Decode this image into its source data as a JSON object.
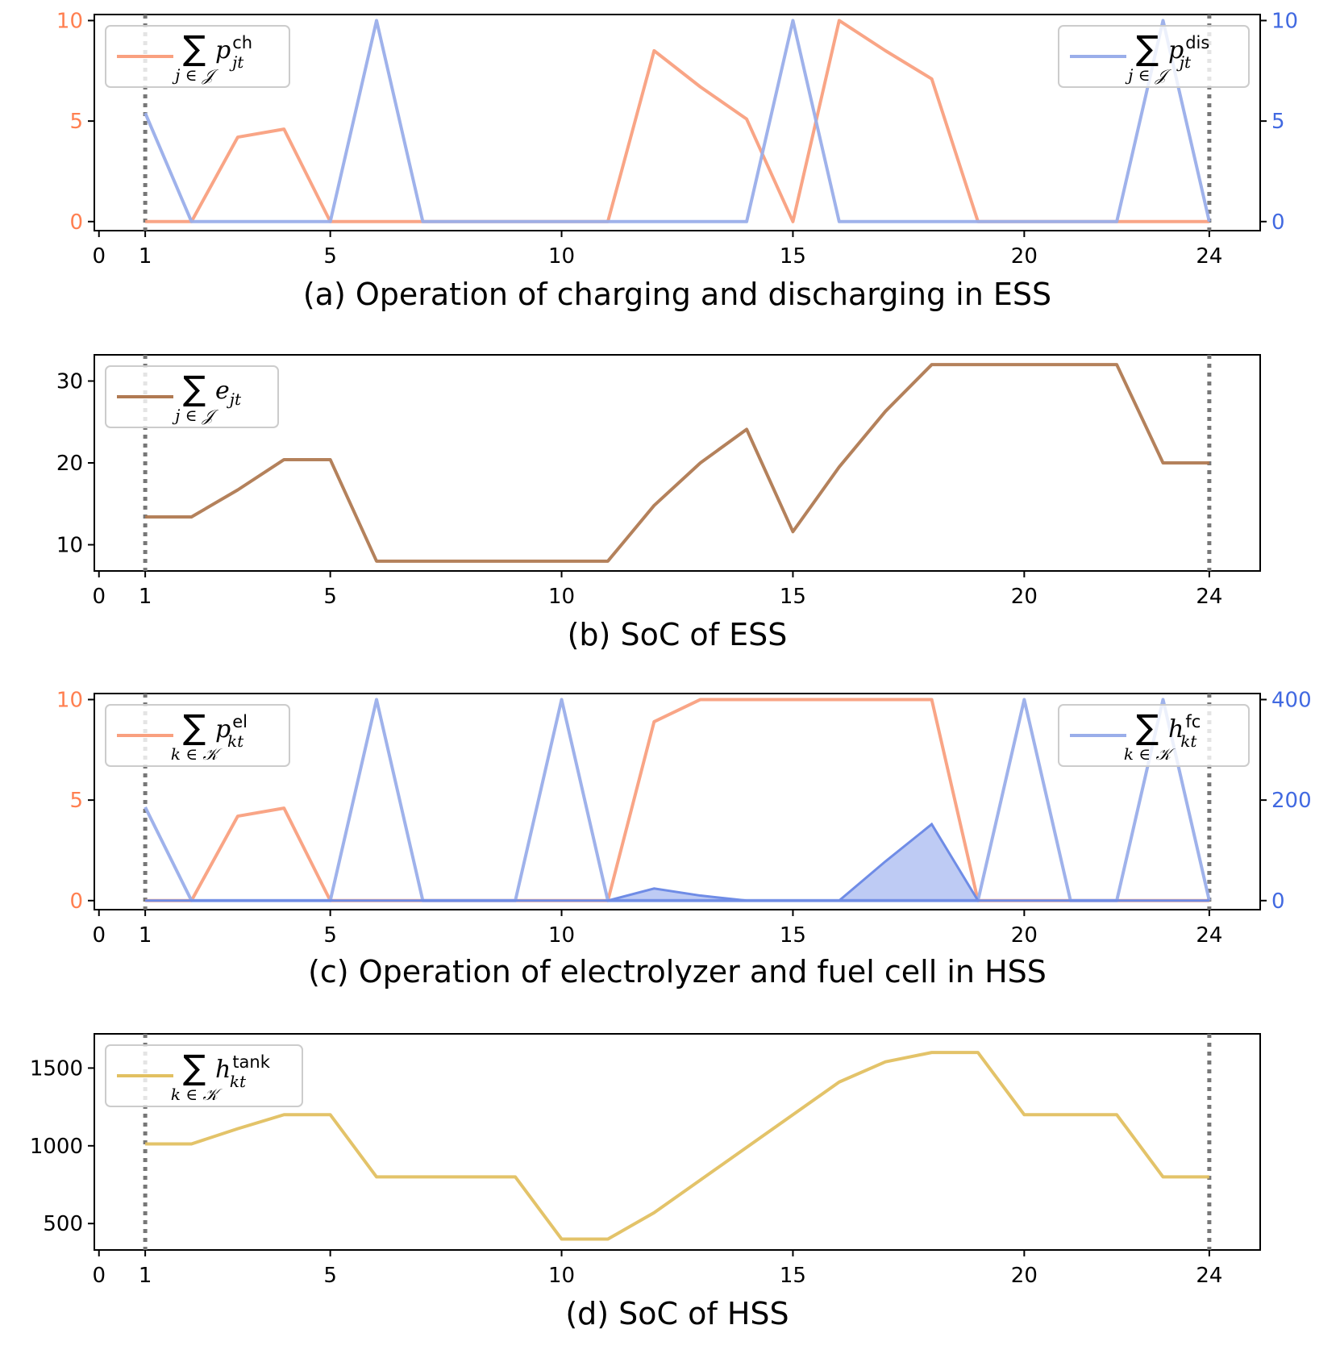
{
  "chart_data": [
    {
      "type": "line",
      "caption": "(a) Operation of charging and discharging in ESS",
      "x": [
        1,
        2,
        3,
        4,
        5,
        6,
        7,
        8,
        9,
        10,
        11,
        12,
        13,
        14,
        15,
        16,
        17,
        18,
        19,
        20,
        21,
        22,
        23,
        24
      ],
      "xticks": [
        0,
        1,
        5,
        10,
        15,
        20,
        24
      ],
      "xlim": [
        -0.1,
        25.1
      ],
      "ylim": [
        -0.45,
        10.3
      ],
      "yticks": [
        0,
        5,
        10
      ],
      "y2lim": [
        -0.45,
        10.3
      ],
      "y2ticks": [
        0,
        5,
        10
      ],
      "vlines": [
        1,
        24
      ],
      "series": [
        {
          "name": "∑ p^ch_jt",
          "sum_index": "j ∈ 𝒥",
          "base": "p",
          "sup": "ch",
          "sub": "jt",
          "axis": "left",
          "color": "#f9a07f",
          "values": [
            0,
            0,
            4.2,
            4.6,
            0,
            0,
            0,
            0,
            0,
            0,
            0,
            8.5,
            6.7,
            5.1,
            0,
            10,
            8.5,
            7.1,
            0,
            0,
            0,
            0,
            0,
            0
          ]
        },
        {
          "name": "∑ p^dis_jt",
          "sum_index": "j ∈ 𝒥",
          "base": "p",
          "sup": "dis",
          "sub": "jt",
          "axis": "right",
          "color": "#9aaeea",
          "values": [
            5.4,
            0,
            0,
            0,
            0,
            10,
            0,
            0,
            0,
            0,
            0,
            0,
            0,
            0,
            10,
            0,
            0,
            0,
            0,
            0,
            0,
            0,
            10,
            0
          ]
        }
      ],
      "legend": [
        "top-left",
        "top-right"
      ],
      "colors": {
        "left_axis": "#ff7f50",
        "right_axis": "#4169e1"
      }
    },
    {
      "type": "line",
      "caption": "(b) SoC of ESS",
      "x": [
        1,
        2,
        3,
        4,
        5,
        6,
        7,
        8,
        9,
        10,
        11,
        12,
        13,
        14,
        15,
        16,
        17,
        18,
        19,
        20,
        21,
        22,
        23,
        24
      ],
      "xticks": [
        0,
        1,
        5,
        10,
        15,
        20,
        24
      ],
      "xlim": [
        -0.1,
        25.1
      ],
      "ylim": [
        6.8,
        33.2
      ],
      "yticks": [
        10,
        20,
        30
      ],
      "vlines": [
        1,
        24
      ],
      "series": [
        {
          "name": "∑ e_jt",
          "sum_index": "j ∈ 𝒥",
          "base": "e",
          "sup": "",
          "sub": "jt",
          "axis": "left",
          "color": "#b07a52",
          "values": [
            13.4,
            13.4,
            16.7,
            20.4,
            20.4,
            8,
            8,
            8,
            8,
            8,
            8,
            14.8,
            20,
            24.1,
            11.6,
            19.5,
            26.3,
            32,
            32,
            32,
            32,
            32,
            20,
            20
          ]
        }
      ],
      "legend": [
        "top-left"
      ]
    },
    {
      "type": "line",
      "caption": "(c) Operation of electrolyzer and fuel cell in HSS",
      "x": [
        1,
        2,
        3,
        4,
        5,
        6,
        7,
        8,
        9,
        10,
        11,
        12,
        13,
        14,
        15,
        16,
        17,
        18,
        19,
        20,
        21,
        22,
        23,
        24
      ],
      "xticks": [
        0,
        1,
        5,
        10,
        15,
        20,
        24
      ],
      "xlim": [
        -0.1,
        25.1
      ],
      "ylim": [
        -0.45,
        10.3
      ],
      "yticks": [
        0,
        5,
        10
      ],
      "y2lim": [
        -18,
        412
      ],
      "y2ticks": [
        0,
        200,
        400
      ],
      "vlines": [
        1,
        24
      ],
      "series": [
        {
          "name": "∑ p^el_kt",
          "sum_index": "k ∈ 𝒦",
          "base": "p",
          "sup": "el",
          "sub": "kt",
          "axis": "left",
          "color": "#f9a07f",
          "values": [
            0,
            0,
            4.2,
            4.6,
            0,
            0,
            0,
            0,
            0,
            0,
            0,
            8.9,
            10,
            10,
            10,
            10,
            10,
            10,
            0,
            0,
            0,
            0,
            0,
            0
          ]
        },
        {
          "name": "∑ h^fc_kt",
          "sum_index": "k ∈ 𝒦",
          "base": "h",
          "sup": "fc",
          "sub": "kt",
          "axis": "right",
          "color": "#9aaeea",
          "values": [
            186,
            0,
            0,
            0,
            0,
            400,
            0,
            0,
            0,
            400,
            0,
            0,
            0,
            0,
            0,
            0,
            0,
            0,
            0,
            400,
            0,
            0,
            400,
            0
          ]
        },
        {
          "name": "filled area",
          "axis": "right",
          "color": "#6f8ce6",
          "values": [
            0,
            0,
            0,
            0,
            0,
            0,
            0,
            0,
            0,
            0,
            0,
            24,
            10,
            0,
            0,
            0,
            78,
            152,
            0,
            0,
            0,
            0,
            0,
            0
          ]
        }
      ],
      "legend": [
        "top-left",
        "top-right"
      ],
      "colors": {
        "left_axis": "#ff7f50",
        "right_axis": "#4169e1"
      }
    },
    {
      "type": "line",
      "caption": "(d) SoC of HSS",
      "x": [
        1,
        2,
        3,
        4,
        5,
        6,
        7,
        8,
        9,
        10,
        11,
        12,
        13,
        14,
        15,
        16,
        17,
        18,
        19,
        20,
        21,
        22,
        23,
        24
      ],
      "xticks": [
        0,
        1,
        5,
        10,
        15,
        20,
        24
      ],
      "xlim": [
        -0.1,
        25.1
      ],
      "ylim": [
        330,
        1720
      ],
      "yticks": [
        500,
        1000,
        1500
      ],
      "vlines": [
        1,
        24
      ],
      "series": [
        {
          "name": "∑ h^tank_kt",
          "sum_index": "k ∈ 𝒦",
          "base": "h",
          "sup": "tank",
          "sub": "kt",
          "axis": "left",
          "color": "#e2c061",
          "values": [
            1012,
            1012,
            1110,
            1200,
            1200,
            800,
            800,
            800,
            800,
            400,
            400,
            570,
            780,
            990,
            1200,
            1410,
            1540,
            1600,
            1600,
            1200,
            1200,
            1200,
            800,
            800
          ]
        }
      ],
      "legend": [
        "top-left"
      ]
    }
  ]
}
